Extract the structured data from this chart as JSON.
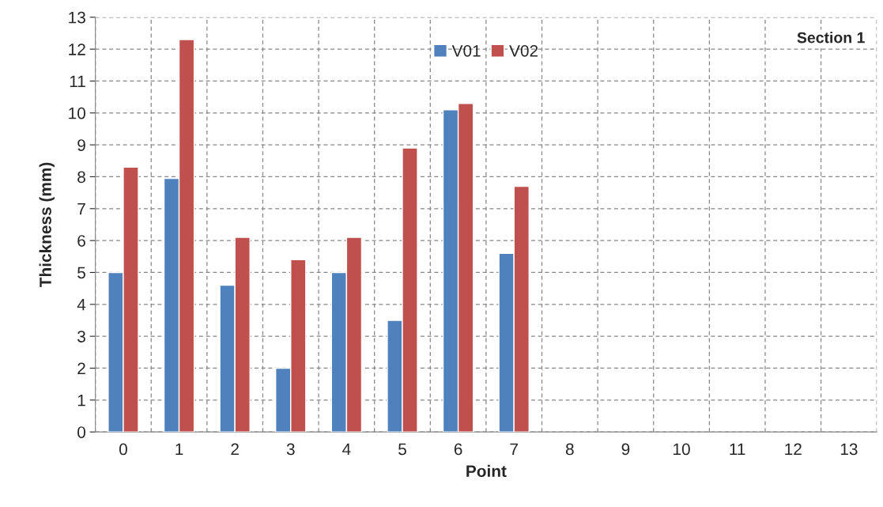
{
  "chart_data": {
    "type": "bar",
    "xlabel": "Point",
    "ylabel": "Thickness (mm)",
    "categories": [
      "0",
      "1",
      "2",
      "3",
      "4",
      "5",
      "6",
      "7",
      "8",
      "9",
      "10",
      "11",
      "12",
      "13"
    ],
    "series": [
      {
        "name": "V01",
        "color": "#4f81bd",
        "values": [
          5.0,
          7.95,
          4.6,
          2.0,
          5.0,
          3.5,
          10.1,
          5.6,
          null,
          null,
          null,
          null,
          null,
          null
        ]
      },
      {
        "name": "V02",
        "color": "#c0504d",
        "values": [
          8.3,
          12.3,
          6.1,
          5.4,
          6.1,
          8.9,
          10.3,
          7.7,
          null,
          null,
          null,
          null,
          null,
          null
        ]
      }
    ],
    "ylim": [
      0,
      13
    ],
    "yticks": [
      0,
      1,
      2,
      3,
      4,
      5,
      6,
      7,
      8,
      9,
      10,
      11,
      12,
      13
    ],
    "grid": true,
    "legend": "top",
    "annotations": [
      "Section 1"
    ]
  }
}
